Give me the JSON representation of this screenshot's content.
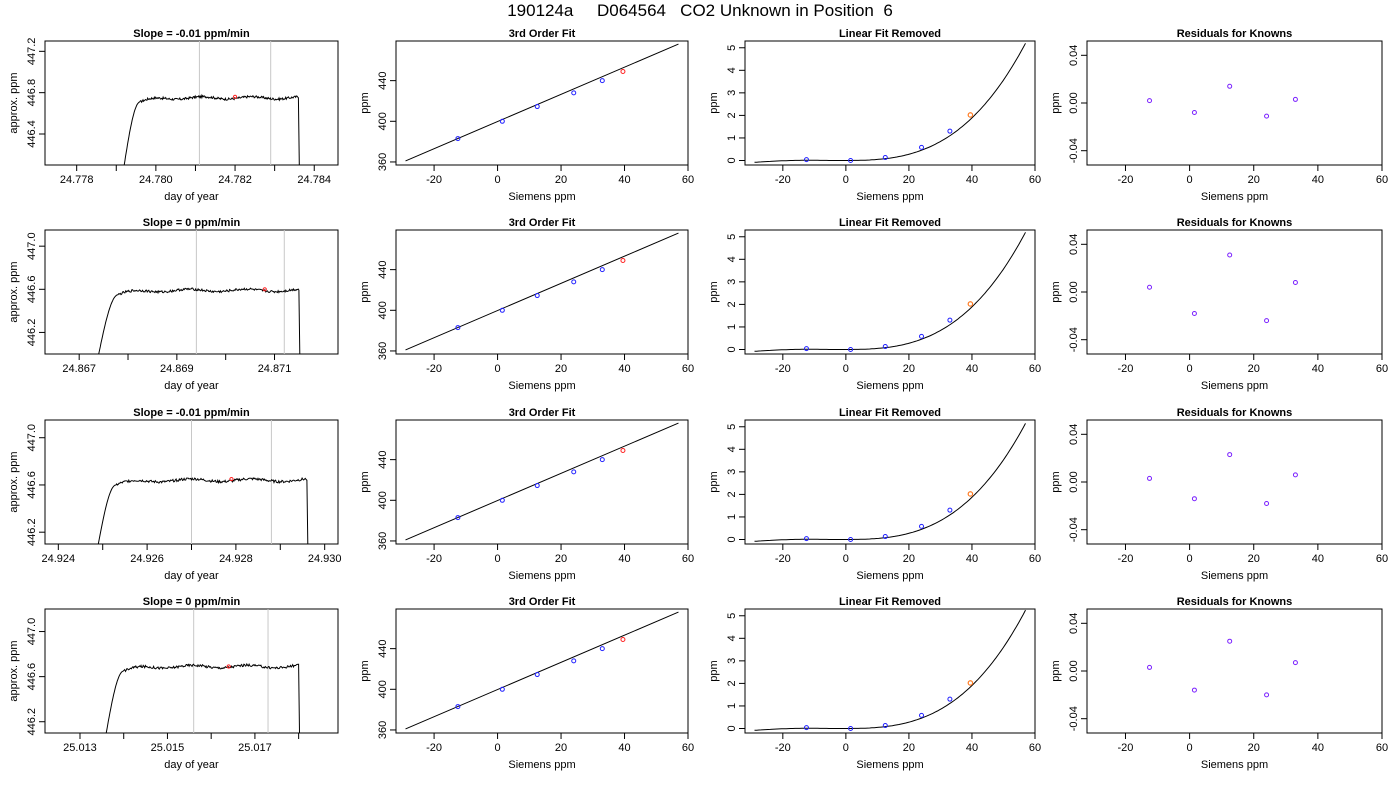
{
  "page_title": "190124a     D064564   CO2 Unknown in Position  6",
  "chart_data": [
    {
      "type": "line",
      "title": "Slope =  -0.01  ppm/min",
      "xlabel": "day of year",
      "ylabel": "approx. ppm",
      "xlim": [
        24.7772,
        24.7846
      ],
      "ylim": [
        446.1,
        447.3
      ],
      "x_ticks": [
        "24.778",
        "24.780",
        "24.782",
        "24.784"
      ],
      "x_minor_ticks": [
        24.779,
        24.781,
        24.783
      ],
      "y_ticks": [
        "446.4",
        "446.8",
        "447.2"
      ],
      "vlines": [
        24.7811,
        24.7829
      ],
      "plateau": 446.75,
      "start": [
        24.7792,
        446.1
      ],
      "rise_end": 24.7796,
      "end": 24.7836,
      "marker": [
        24.782,
        446.76
      ]
    },
    {
      "type": "scatter",
      "title": "3rd Order Fit",
      "xlabel": "Siemens ppm",
      "ylabel": "ppm",
      "xlim": [
        -32,
        60
      ],
      "ylim": [
        357,
        479
      ],
      "x_ticks": [
        "-20",
        "0",
        "20",
        "40",
        "60"
      ],
      "y_ticks": [
        "360",
        "400",
        "440"
      ],
      "line": [
        [
          -29,
          361
        ],
        [
          57,
          476
        ]
      ],
      "knowns": [
        [
          -12.5,
          383
        ],
        [
          1.5,
          400
        ],
        [
          12.5,
          414.5
        ],
        [
          24,
          428
        ],
        [
          33,
          440
        ]
      ],
      "unknown": [
        39.5,
        449
      ]
    },
    {
      "type": "line",
      "title": "Linear Fit Removed",
      "xlabel": "Siemens ppm",
      "ylabel": "ppm",
      "xlim": [
        -32,
        60
      ],
      "ylim": [
        -0.2,
        5.3
      ],
      "x_ticks": [
        "-20",
        "0",
        "20",
        "40",
        "60"
      ],
      "y_ticks": [
        "0",
        "1",
        "2",
        "3",
        "4",
        "5"
      ],
      "curve_end": 5.2,
      "knowns": [
        [
          -12.5,
          0.04
        ],
        [
          1.5,
          0.0
        ],
        [
          12.5,
          0.13
        ],
        [
          24,
          0.58
        ],
        [
          33,
          1.3
        ]
      ],
      "unknown": [
        39.5,
        2.02
      ]
    },
    {
      "type": "scatter",
      "title": "Residuals for Knowns",
      "xlabel": "Siemens ppm",
      "ylabel": "ppm",
      "xlim": [
        -32,
        60
      ],
      "ylim": [
        -0.052,
        0.052
      ],
      "x_ticks": [
        "-20",
        "0",
        "20",
        "40",
        "60"
      ],
      "y_ticks": [
        "-0.04",
        "0.00",
        "0.04"
      ],
      "knowns": [
        [
          -12.5,
          0.002
        ],
        [
          1.5,
          -0.008
        ],
        [
          12.5,
          0.014
        ],
        [
          24,
          -0.011
        ],
        [
          33,
          0.003
        ]
      ]
    },
    {
      "type": "line",
      "title": "Slope =  0  ppm/min",
      "xlabel": "day of year",
      "ylabel": "approx. ppm",
      "xlim": [
        24.8663,
        24.8723
      ],
      "ylim": [
        446.0,
        447.15
      ],
      "x_ticks": [
        "24.867",
        "24.869",
        "24.871"
      ],
      "x_minor_ticks": [
        24.868,
        24.87
      ],
      "y_ticks": [
        "446.2",
        "446.6",
        "447.0"
      ],
      "vlines": [
        24.8694,
        24.8712
      ],
      "plateau": 446.59,
      "start": [
        24.8674,
        446.0
      ],
      "rise_end": 24.8678,
      "end": 24.8715,
      "marker": [
        24.8708,
        446.6
      ]
    },
    {
      "type": "scatter",
      "title": "3rd Order Fit",
      "xlabel": "Siemens ppm",
      "ylabel": "ppm",
      "xlim": [
        -32,
        60
      ],
      "ylim": [
        357,
        479
      ],
      "x_ticks": [
        "-20",
        "0",
        "20",
        "40",
        "60"
      ],
      "y_ticks": [
        "360",
        "400",
        "440"
      ],
      "line": [
        [
          -29,
          361
        ],
        [
          57,
          476
        ]
      ],
      "knowns": [
        [
          -12.5,
          383
        ],
        [
          1.5,
          400
        ],
        [
          12.5,
          414.5
        ],
        [
          24,
          428
        ],
        [
          33,
          440
        ]
      ],
      "unknown": [
        39.5,
        449
      ]
    },
    {
      "type": "line",
      "title": "Linear Fit Removed",
      "xlabel": "Siemens ppm",
      "ylabel": "ppm",
      "xlim": [
        -32,
        60
      ],
      "ylim": [
        -0.2,
        5.3
      ],
      "x_ticks": [
        "-20",
        "0",
        "20",
        "40",
        "60"
      ],
      "y_ticks": [
        "0",
        "1",
        "2",
        "3",
        "4",
        "5"
      ],
      "curve_end": 5.2,
      "knowns": [
        [
          -12.5,
          0.04
        ],
        [
          1.5,
          0.0
        ],
        [
          12.5,
          0.13
        ],
        [
          24,
          0.58
        ],
        [
          33,
          1.3
        ]
      ],
      "unknown": [
        39.5,
        2.02
      ]
    },
    {
      "type": "scatter",
      "title": "Residuals for Knowns",
      "xlabel": "Siemens ppm",
      "ylabel": "ppm",
      "xlim": [
        -32,
        60
      ],
      "ylim": [
        -0.052,
        0.052
      ],
      "x_ticks": [
        "-20",
        "0",
        "20",
        "40",
        "60"
      ],
      "y_ticks": [
        "-0.04",
        "0.00",
        "0.04"
      ],
      "knowns": [
        [
          -12.5,
          0.004
        ],
        [
          1.5,
          -0.018
        ],
        [
          12.5,
          0.031
        ],
        [
          24,
          -0.024
        ],
        [
          33,
          0.008
        ]
      ]
    },
    {
      "type": "line",
      "title": "Slope =  -0.01  ppm/min",
      "xlabel": "day of year",
      "ylabel": "approx. ppm",
      "xlim": [
        24.9237,
        24.9303
      ],
      "ylim": [
        446.1,
        447.15
      ],
      "x_ticks": [
        "24.924",
        "24.926",
        "24.928",
        "24.930"
      ],
      "x_minor_ticks": [
        24.925,
        24.927,
        24.929
      ],
      "y_ticks": [
        "446.2",
        "446.6",
        "447.0"
      ],
      "vlines": [
        24.927,
        24.9288
      ],
      "plateau": 446.64,
      "start": [
        24.9249,
        446.1
      ],
      "rise_end": 24.9253,
      "end": 24.9296,
      "marker": [
        24.9279,
        446.65
      ]
    },
    {
      "type": "scatter",
      "title": "3rd Order Fit",
      "xlabel": "Siemens ppm",
      "ylabel": "ppm",
      "xlim": [
        -32,
        60
      ],
      "ylim": [
        357,
        479
      ],
      "x_ticks": [
        "-20",
        "0",
        "20",
        "40",
        "60"
      ],
      "y_ticks": [
        "360",
        "400",
        "440"
      ],
      "line": [
        [
          -29,
          361
        ],
        [
          57,
          476
        ]
      ],
      "knowns": [
        [
          -12.5,
          383
        ],
        [
          1.5,
          400
        ],
        [
          12.5,
          414.5
        ],
        [
          24,
          428
        ],
        [
          33,
          440
        ]
      ],
      "unknown": [
        39.5,
        449
      ]
    },
    {
      "type": "line",
      "title": "Linear Fit Removed",
      "xlabel": "Siemens ppm",
      "ylabel": "ppm",
      "xlim": [
        -32,
        60
      ],
      "ylim": [
        -0.2,
        5.3
      ],
      "x_ticks": [
        "-20",
        "0",
        "20",
        "40",
        "60"
      ],
      "y_ticks": [
        "0",
        "1",
        "2",
        "3",
        "4",
        "5"
      ],
      "curve_end": 5.15,
      "knowns": [
        [
          -12.5,
          0.04
        ],
        [
          1.5,
          0.0
        ],
        [
          12.5,
          0.13
        ],
        [
          24,
          0.58
        ],
        [
          33,
          1.3
        ]
      ],
      "unknown": [
        39.5,
        2.02
      ]
    },
    {
      "type": "scatter",
      "title": "Residuals for Knowns",
      "xlabel": "Siemens ppm",
      "ylabel": "ppm",
      "xlim": [
        -32,
        60
      ],
      "ylim": [
        -0.052,
        0.052
      ],
      "x_ticks": [
        "-20",
        "0",
        "20",
        "40",
        "60"
      ],
      "y_ticks": [
        "-0.04",
        "0.00",
        "0.04"
      ],
      "knowns": [
        [
          -12.5,
          0.003
        ],
        [
          1.5,
          -0.014
        ],
        [
          12.5,
          0.023
        ],
        [
          24,
          -0.018
        ],
        [
          33,
          0.006
        ]
      ]
    },
    {
      "type": "line",
      "title": "Slope =  0  ppm/min",
      "xlabel": "day of year",
      "ylabel": "approx. ppm",
      "xlim": [
        25.0122,
        25.0189
      ],
      "ylim": [
        446.1,
        447.2
      ],
      "x_ticks": [
        "25.013",
        "25.015",
        "25.017"
      ],
      "x_minor_ticks": [
        25.014,
        25.016,
        25.018
      ],
      "y_ticks": [
        "446.2",
        "446.6",
        "447.0"
      ],
      "vlines": [
        25.0156,
        25.0173
      ],
      "plateau": 446.69,
      "start": [
        25.0136,
        446.1
      ],
      "rise_end": 25.014,
      "end": 25.018,
      "marker": [
        25.0164,
        446.69
      ]
    },
    {
      "type": "scatter",
      "title": "3rd Order Fit",
      "xlabel": "Siemens ppm",
      "ylabel": "ppm",
      "xlim": [
        -32,
        60
      ],
      "ylim": [
        357,
        479
      ],
      "x_ticks": [
        "-20",
        "0",
        "20",
        "40",
        "60"
      ],
      "y_ticks": [
        "360",
        "400",
        "440"
      ],
      "line": [
        [
          -29,
          361
        ],
        [
          57,
          476
        ]
      ],
      "knowns": [
        [
          -12.5,
          383
        ],
        [
          1.5,
          400
        ],
        [
          12.5,
          414.5
        ],
        [
          24,
          428
        ],
        [
          33,
          440
        ]
      ],
      "unknown": [
        39.5,
        449
      ]
    },
    {
      "type": "line",
      "title": "Linear Fit Removed",
      "xlabel": "Siemens ppm",
      "ylabel": "ppm",
      "xlim": [
        -32,
        60
      ],
      "ylim": [
        -0.2,
        5.3
      ],
      "x_ticks": [
        "-20",
        "0",
        "20",
        "40",
        "60"
      ],
      "y_ticks": [
        "0",
        "1",
        "2",
        "3",
        "4",
        "5"
      ],
      "curve_end": 5.25,
      "knowns": [
        [
          -12.5,
          0.04
        ],
        [
          1.5,
          0.0
        ],
        [
          12.5,
          0.13
        ],
        [
          24,
          0.58
        ],
        [
          33,
          1.3
        ]
      ],
      "unknown": [
        39.5,
        2.02
      ]
    },
    {
      "type": "scatter",
      "title": "Residuals for Knowns",
      "xlabel": "Siemens ppm",
      "ylabel": "ppm",
      "xlim": [
        -32,
        60
      ],
      "ylim": [
        -0.052,
        0.052
      ],
      "x_ticks": [
        "-20",
        "0",
        "20",
        "40",
        "60"
      ],
      "y_ticks": [
        "-0.04",
        "0.00",
        "0.04"
      ],
      "knowns": [
        [
          -12.5,
          0.003
        ],
        [
          1.5,
          -0.016
        ],
        [
          12.5,
          0.025
        ],
        [
          24,
          -0.02
        ],
        [
          33,
          0.007
        ]
      ]
    }
  ]
}
